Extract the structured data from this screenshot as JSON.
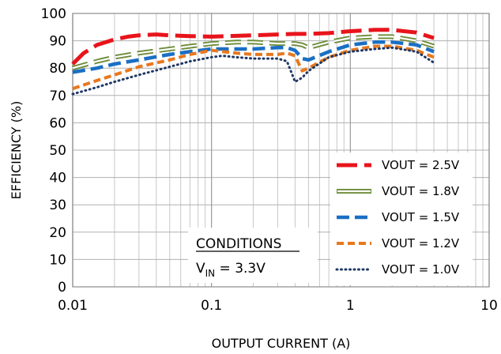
{
  "chart_data": {
    "type": "line",
    "title": "",
    "xlabel": "OUTPUT CURRENT (A)",
    "ylabel": "EFFICIENCY (%)",
    "x_scale": "log",
    "xlim": [
      0.01,
      10
    ],
    "ylim": [
      0,
      100
    ],
    "x_ticks": [
      "0.01",
      "0.1",
      "1",
      "10"
    ],
    "y_ticks": [
      "0",
      "10",
      "20",
      "30",
      "40",
      "50",
      "60",
      "70",
      "80",
      "90",
      "100"
    ],
    "grid": true,
    "legend_position": "bottom-right",
    "conditions": {
      "heading": "CONDITIONS",
      "line_prefix": "V",
      "line_sub": "IN",
      "line_suffix": " = 3.3V"
    },
    "series": [
      {
        "name": "VOUT = 2.5V",
        "color": "#e8141b",
        "style": "long-dash",
        "x": [
          0.01,
          0.012,
          0.015,
          0.02,
          0.025,
          0.03,
          0.04,
          0.05,
          0.07,
          0.1,
          0.15,
          0.2,
          0.3,
          0.4,
          0.45,
          0.5,
          0.7,
          1.0,
          1.5,
          2.0,
          3.0,
          4.0
        ],
        "y": [
          81.5,
          85.5,
          88.5,
          90.5,
          91.5,
          92.0,
          92.3,
          92.0,
          91.7,
          91.5,
          91.8,
          92.0,
          92.3,
          92.5,
          92.5,
          92.5,
          92.8,
          93.5,
          94.0,
          94.0,
          93.0,
          91.0
        ]
      },
      {
        "name": "VOUT = 1.8V",
        "color": "#6e8c3a",
        "style": "double-line",
        "x": [
          0.01,
          0.015,
          0.02,
          0.03,
          0.05,
          0.07,
          0.1,
          0.15,
          0.2,
          0.3,
          0.4,
          0.45,
          0.5,
          0.7,
          1.0,
          1.5,
          2.0,
          3.0,
          4.0
        ],
        "y": [
          80.0,
          82.5,
          84.0,
          85.5,
          87.0,
          88.0,
          89.0,
          89.5,
          89.5,
          89.0,
          89.0,
          88.5,
          87.5,
          89.5,
          91.0,
          91.5,
          91.5,
          90.0,
          88.0
        ]
      },
      {
        "name": "VOUT = 1.5V",
        "color": "#1a6fc4",
        "style": "dash",
        "x": [
          0.01,
          0.015,
          0.02,
          0.03,
          0.05,
          0.07,
          0.1,
          0.15,
          0.2,
          0.3,
          0.35,
          0.4,
          0.45,
          0.5,
          0.7,
          1.0,
          1.5,
          2.0,
          3.0,
          4.0
        ],
        "y": [
          78.5,
          80.0,
          81.5,
          83.0,
          85.0,
          86.0,
          87.0,
          87.0,
          87.0,
          87.5,
          87.5,
          86.5,
          83.5,
          83.0,
          86.0,
          88.5,
          89.5,
          89.5,
          88.5,
          86.0
        ]
      },
      {
        "name": "VOUT = 1.2V",
        "color": "#e8781e",
        "style": "short-dash",
        "x": [
          0.01,
          0.015,
          0.02,
          0.03,
          0.05,
          0.07,
          0.1,
          0.15,
          0.2,
          0.3,
          0.35,
          0.4,
          0.45,
          0.5,
          0.7,
          1.0,
          1.5,
          2.0,
          3.0,
          4.0
        ],
        "y": [
          72.5,
          75.5,
          77.5,
          80.5,
          83.0,
          85.0,
          86.5,
          85.5,
          85.0,
          85.0,
          85.5,
          84.5,
          79.0,
          80.0,
          84.0,
          86.5,
          88.0,
          88.0,
          86.5,
          84.0
        ]
      },
      {
        "name": "VOUT = 1.0V",
        "color": "#1f3864",
        "style": "dot",
        "x": [
          0.01,
          0.015,
          0.02,
          0.03,
          0.05,
          0.07,
          0.1,
          0.12,
          0.15,
          0.2,
          0.3,
          0.35,
          0.4,
          0.45,
          0.5,
          0.7,
          1.0,
          1.5,
          2.0,
          3.0,
          4.0
        ],
        "y": [
          70.5,
          73.0,
          75.0,
          77.5,
          80.5,
          82.5,
          84.0,
          84.5,
          84.0,
          83.5,
          83.5,
          82.5,
          75.0,
          76.5,
          79.0,
          84.0,
          86.0,
          87.0,
          87.5,
          86.0,
          82.0
        ]
      }
    ]
  }
}
